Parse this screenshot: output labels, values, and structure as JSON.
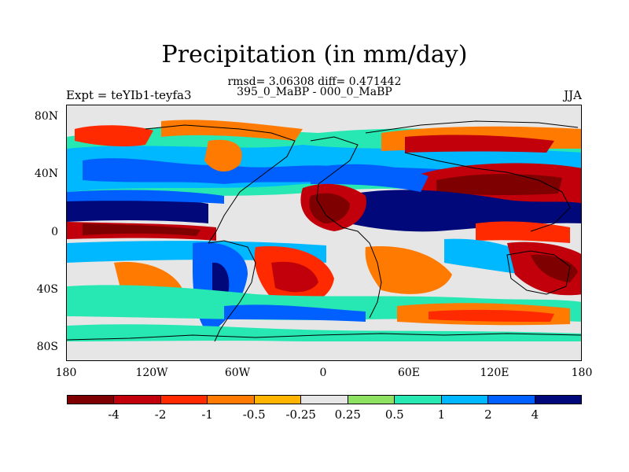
{
  "title": "Precipitation (in mm/day)",
  "stats": "rmsd= 3.06308 diff= 0.471442",
  "experiment_periods": "395_0_MaBP - 000_0_MaBP",
  "experiment_label": "Expt = teYIb1-teyfa3",
  "season": "JJA",
  "y_ticks": [
    "80N",
    "40N",
    "0",
    "40S",
    "80S"
  ],
  "x_ticks": [
    "180",
    "120W",
    "60W",
    "0",
    "60E",
    "120E",
    "180"
  ],
  "colorbar": {
    "colors": [
      "#7f0000",
      "#c1000b",
      "#ff2a00",
      "#ff7a00",
      "#ffb400",
      "#e6e6e6",
      "#8de35f",
      "#27e8b3",
      "#00b8ff",
      "#0060ff",
      "#00087a"
    ],
    "labels": [
      "-4",
      "-2",
      "-1",
      "-0.5",
      "-0.25",
      "0.25",
      "0.5",
      "1",
      "2",
      "4"
    ]
  },
  "map_colors": {
    "land_mask": "#e6e6e6",
    "neutral": "#e6e6e6"
  }
}
